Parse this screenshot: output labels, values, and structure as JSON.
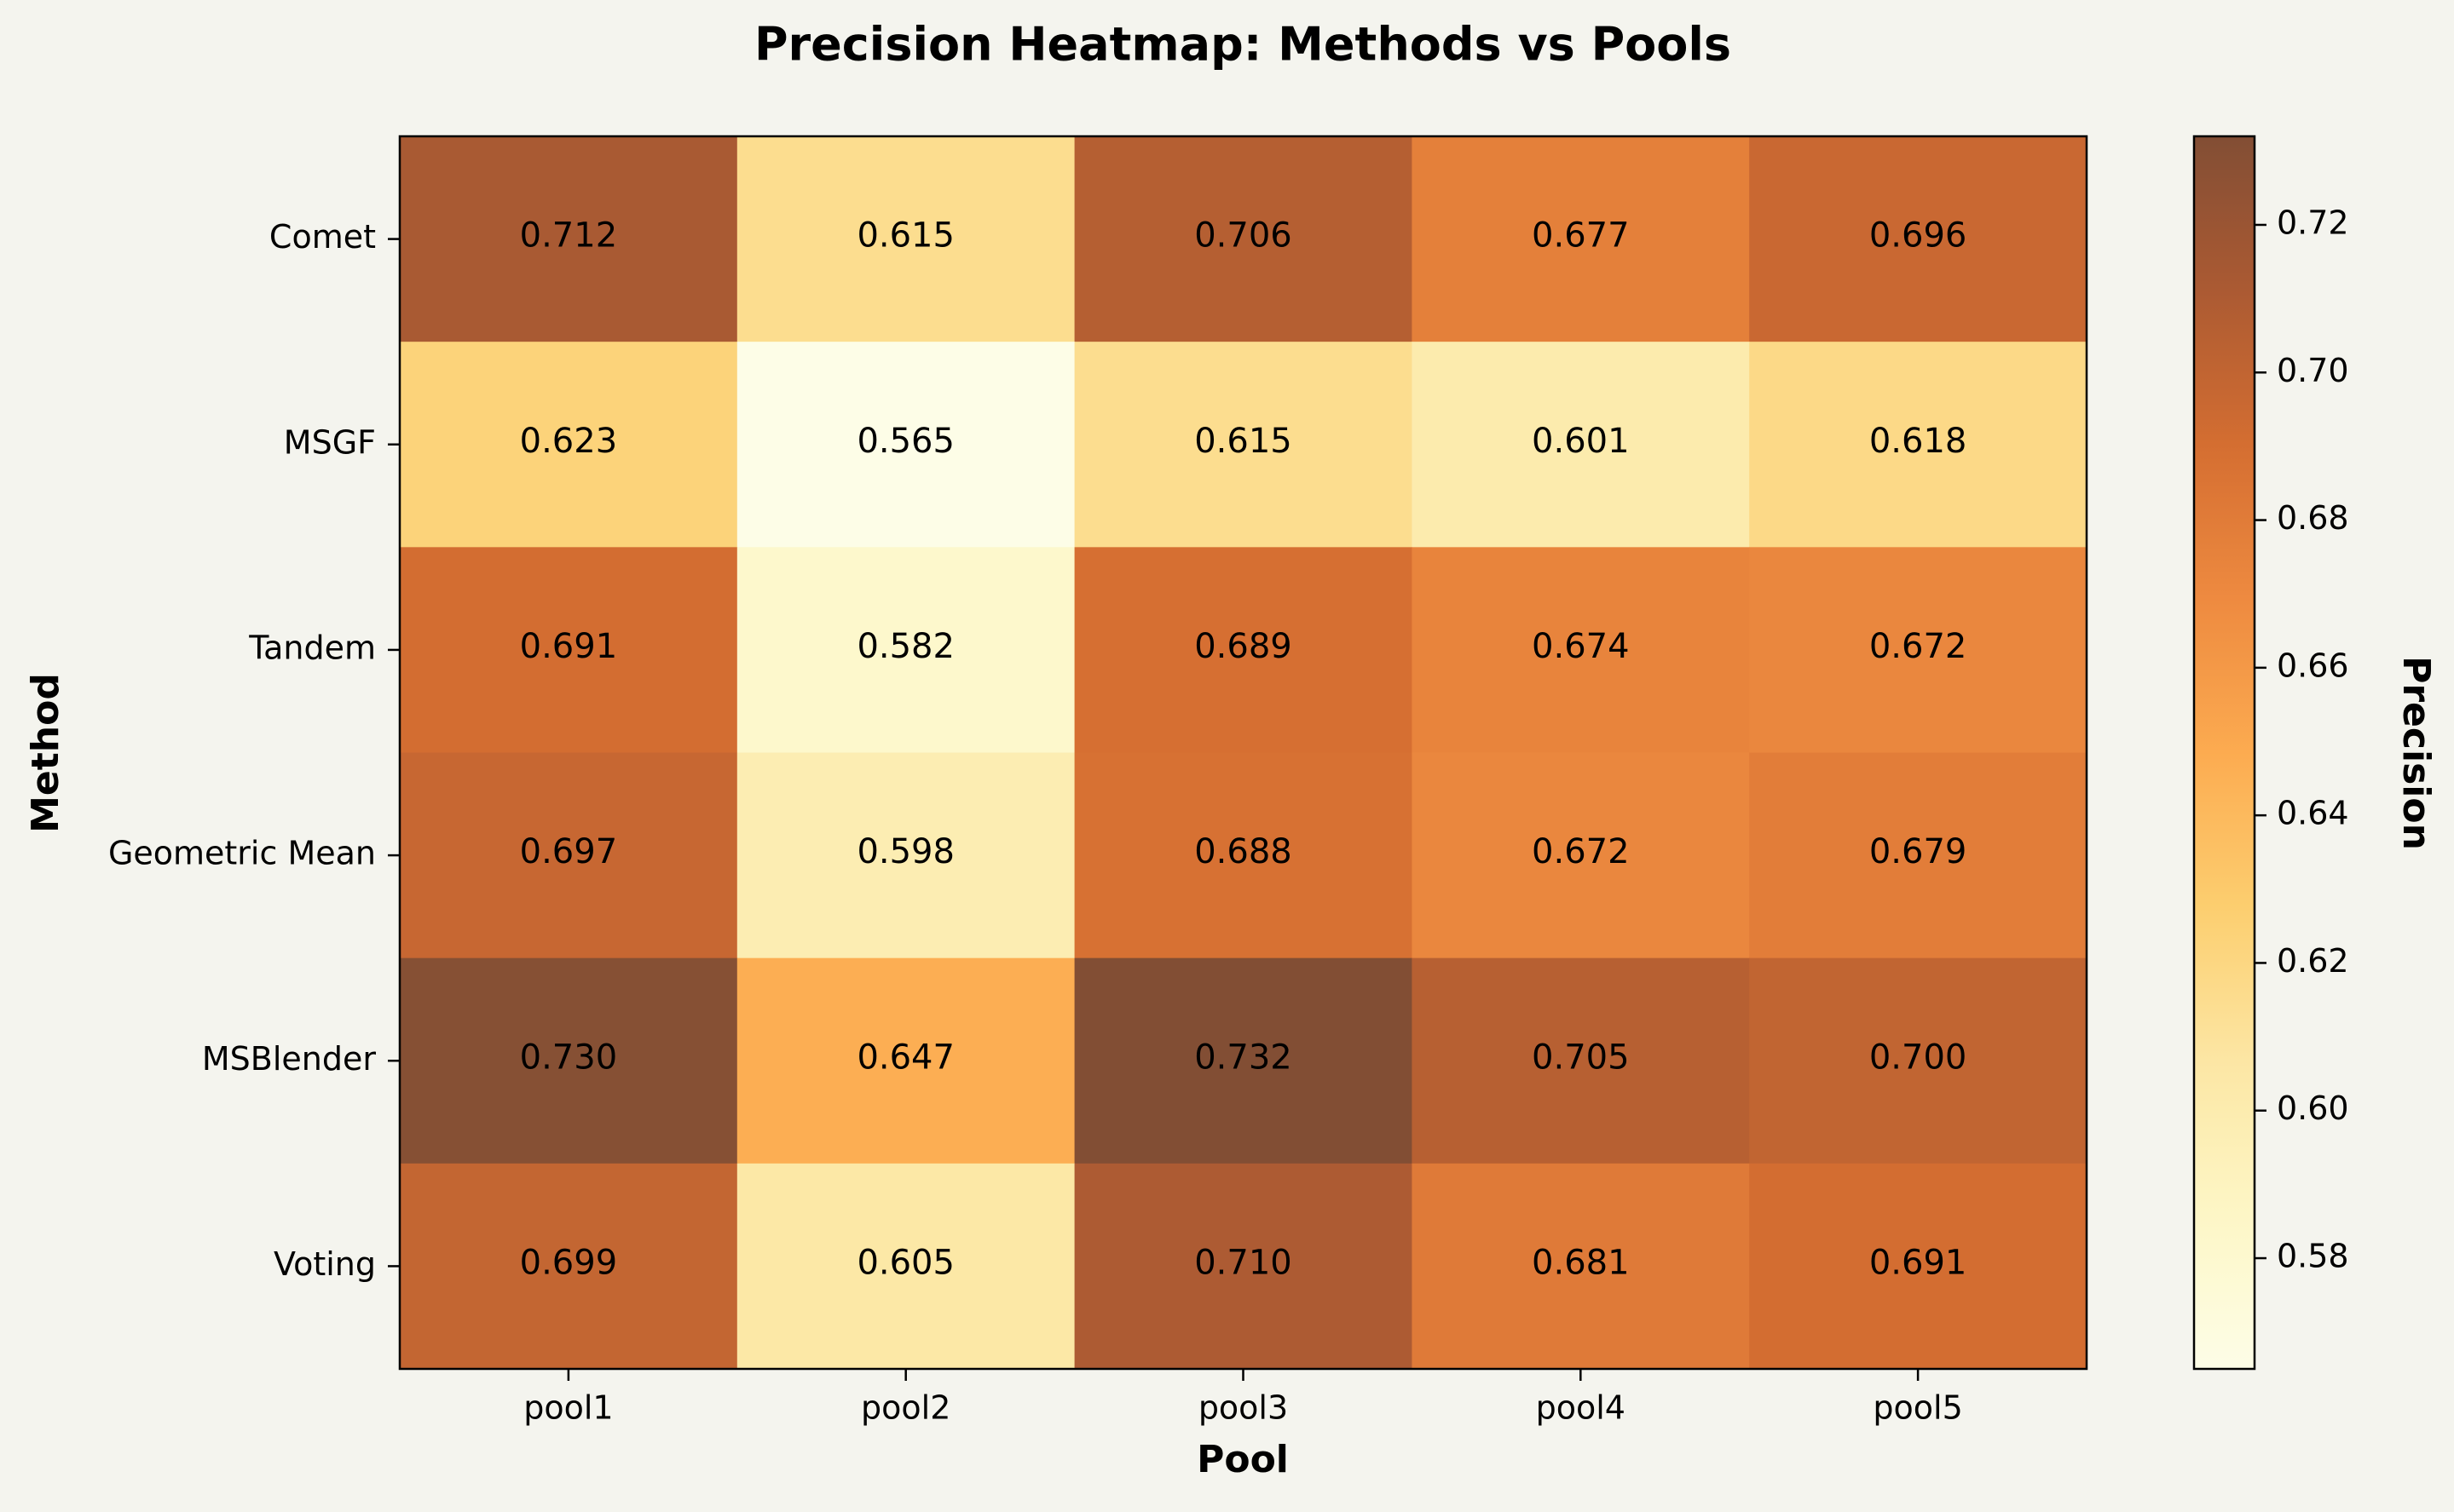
{
  "chart_data": {
    "type": "heatmap",
    "title": "Precision Heatmap: Methods vs Pools",
    "xlabel": "Pool",
    "ylabel": "Method",
    "x_categories": [
      "pool1",
      "pool2",
      "pool3",
      "pool4",
      "pool5"
    ],
    "y_categories": [
      "Comet",
      "MSGF",
      "Tandem",
      "Geometric Mean",
      "MSBlender",
      "Voting"
    ],
    "values": [
      [
        0.712,
        0.615,
        0.706,
        0.677,
        0.696
      ],
      [
        0.623,
        0.565,
        0.615,
        0.601,
        0.618
      ],
      [
        0.691,
        0.582,
        0.689,
        0.674,
        0.672
      ],
      [
        0.697,
        0.598,
        0.688,
        0.672,
        0.679
      ],
      [
        0.73,
        0.647,
        0.732,
        0.705,
        0.7
      ],
      [
        0.699,
        0.605,
        0.71,
        0.681,
        0.691
      ]
    ],
    "value_labels": [
      [
        "0.712",
        "0.615",
        "0.706",
        "0.677",
        "0.696"
      ],
      [
        "0.623",
        "0.565",
        "0.615",
        "0.601",
        "0.618"
      ],
      [
        "0.691",
        "0.582",
        "0.689",
        "0.674",
        "0.672"
      ],
      [
        "0.697",
        "0.598",
        "0.688",
        "0.672",
        "0.679"
      ],
      [
        "0.730",
        "0.647",
        "0.732",
        "0.705",
        "0.700"
      ],
      [
        "0.699",
        "0.605",
        "0.710",
        "0.681",
        "0.691"
      ]
    ],
    "colorbar": {
      "label": "Precision",
      "range": [
        0.565,
        0.732
      ],
      "ticks": [
        "0.58",
        "0.60",
        "0.62",
        "0.64",
        "0.66",
        "0.68",
        "0.70",
        "0.72"
      ],
      "colormap": "YlOrBr",
      "colors": [
        "#ffffe5",
        "#fff7bc",
        "#fee391",
        "#fec44f",
        "#fe9929",
        "#ec7014",
        "#cc4c02",
        "#993404",
        "#662506"
      ],
      "alpha": 0.8
    },
    "grid": false,
    "background_color": "#f4f4ee"
  }
}
